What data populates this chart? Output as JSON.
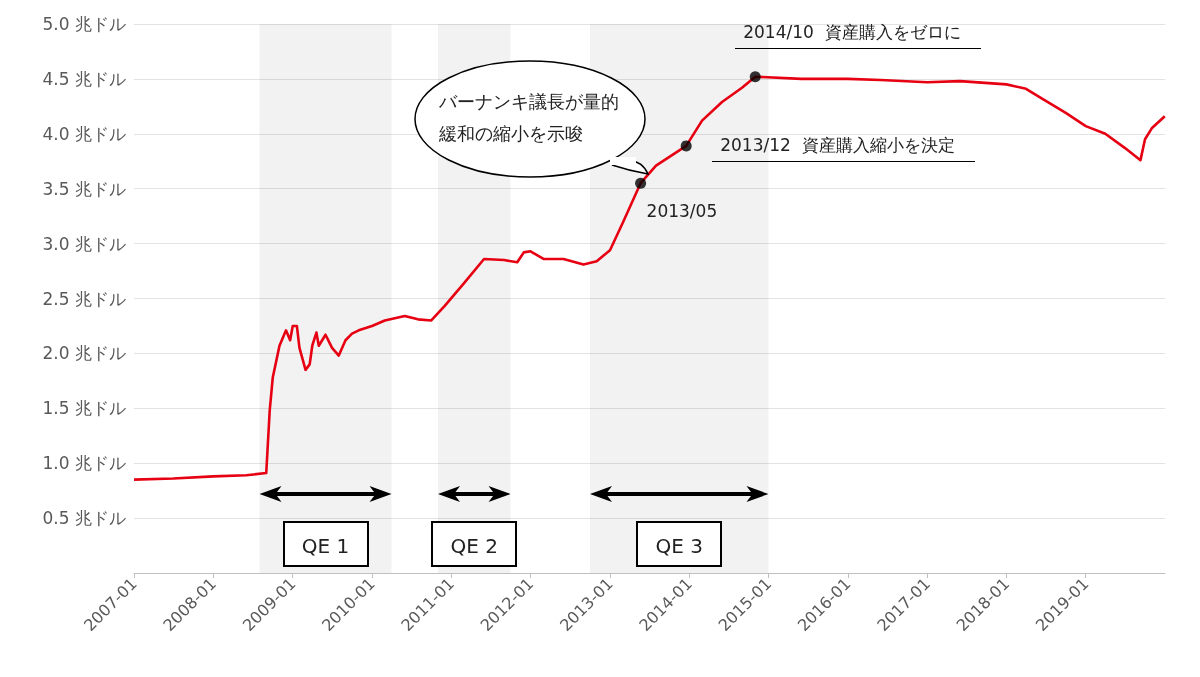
{
  "chart_data": {
    "type": "line",
    "x": [
      "2007-01-01",
      "2007-07-01",
      "2008-01-01",
      "2008-06-01",
      "2008-09-01",
      "2008-09-17",
      "2008-10-01",
      "2008-11-01",
      "2008-12-01",
      "2008-12-20",
      "2009-01-01",
      "2009-01-20",
      "2009-02-01",
      "2009-03-01",
      "2009-03-20",
      "2009-04-01",
      "2009-04-20",
      "2009-05-01",
      "2009-06-01",
      "2009-07-01",
      "2009-08-01",
      "2009-09-01",
      "2009-10-01",
      "2009-11-01",
      "2010-01-01",
      "2010-03-01",
      "2010-06-01",
      "2010-08-01",
      "2010-10-01",
      "2010-12-01",
      "2011-03-01",
      "2011-06-01",
      "2011-09-01",
      "2011-11-01",
      "2011-12-01",
      "2012-01-01",
      "2012-03-01",
      "2012-06-01",
      "2012-09-01",
      "2012-11-01",
      "2013-01-01",
      "2013-03-01",
      "2013-05-22",
      "2013-08-01",
      "2013-12-18",
      "2014-03-01",
      "2014-06-01",
      "2014-09-01",
      "2014-11-01",
      "2015-06-01",
      "2016-01-01",
      "2016-06-01",
      "2017-01-01",
      "2017-06-01",
      "2018-01-01",
      "2018-04-01",
      "2018-07-01",
      "2018-10-01",
      "2019-01-01",
      "2019-04-01",
      "2019-07-01",
      "2019-09-10",
      "2019-10-01",
      "2019-11-01",
      "2019-12-31"
    ],
    "series": [
      {
        "color": "#e60012",
        "values": [
          0.85,
          0.86,
          0.88,
          0.89,
          0.91,
          1.48,
          1.78,
          2.07,
          2.21,
          2.12,
          2.25,
          2.25,
          2.05,
          1.85,
          1.9,
          2.07,
          2.19,
          2.07,
          2.17,
          2.05,
          1.98,
          2.12,
          2.18,
          2.21,
          2.25,
          2.3,
          2.34,
          2.31,
          2.3,
          2.43,
          2.64,
          2.86,
          2.85,
          2.83,
          2.92,
          2.93,
          2.86,
          2.86,
          2.81,
          2.84,
          2.94,
          3.19,
          3.55,
          3.71,
          3.89,
          4.12,
          4.29,
          4.42,
          4.52,
          4.5,
          4.5,
          4.49,
          4.47,
          4.48,
          4.45,
          4.41,
          4.3,
          4.19,
          4.07,
          4.0,
          3.87,
          3.76,
          3.95,
          4.05,
          4.16
        ]
      },
      {
        "type": "scatter",
        "marker": "circle",
        "color": "#000000",
        "x": [
          "2013-05-22",
          "2013-12-18",
          "2014-11-01"
        ],
        "values": [
          3.55,
          3.89,
          4.52
        ]
      }
    ],
    "xlim": [
      "2007-01-01",
      "2020-01-01"
    ],
    "xticks": [
      "2007-01",
      "2008-01",
      "2009-01",
      "2010-01",
      "2011-01",
      "2012-01",
      "2013-01",
      "2014-01",
      "2015-01",
      "2016-01",
      "2017-01",
      "2018-01",
      "2019-01"
    ],
    "ylim": [
      0,
      5
    ],
    "yticks": [
      {
        "value": 0,
        "label": null
      },
      {
        "value": 0.5,
        "label": "0.5 兆ドル"
      },
      {
        "value": 1,
        "label": "1.0 兆ドル"
      },
      {
        "value": 1.5,
        "label": "1.5 兆ドル"
      },
      {
        "value": 2,
        "label": "2.0 兆ドル"
      },
      {
        "value": 2.5,
        "label": "2.5 兆ドル"
      },
      {
        "value": 3,
        "label": "3.0 兆ドル"
      },
      {
        "value": 3.5,
        "label": "3.5 兆ドル"
      },
      {
        "value": 4,
        "label": "4.0 兆ドル"
      },
      {
        "value": 4.5,
        "label": "4.5 兆ドル"
      },
      {
        "value": 5,
        "label": "5.0 兆ドル"
      }
    ],
    "grid": "y",
    "marker": "none",
    "line_style": "solid",
    "annotations": [
      "バーナンキ議長が量的緩和の縮小を示唆",
      {
        "text": "2013/05",
        "x": "2013-05-22",
        "y": 3.55
      },
      {
        "text": "2013/12  資産購入縮小を決定",
        "x": "2013-12-18",
        "y": 3.89
      },
      {
        "text": "2014/10  資産購入をゼロに",
        "x": "2014-11-01",
        "y": 4.52
      }
    ],
    "bands": [
      {
        "axis": "x",
        "from": "2008-08-01",
        "to": "2010-04-01",
        "label": "QE 1"
      },
      {
        "axis": "x",
        "from": "2010-11-01",
        "to": "2011-10-01",
        "label": "QE 2"
      },
      {
        "axis": "x",
        "from": "2012-10-01",
        "to": "2015-01-01",
        "label": "QE 3"
      }
    ]
  }
}
